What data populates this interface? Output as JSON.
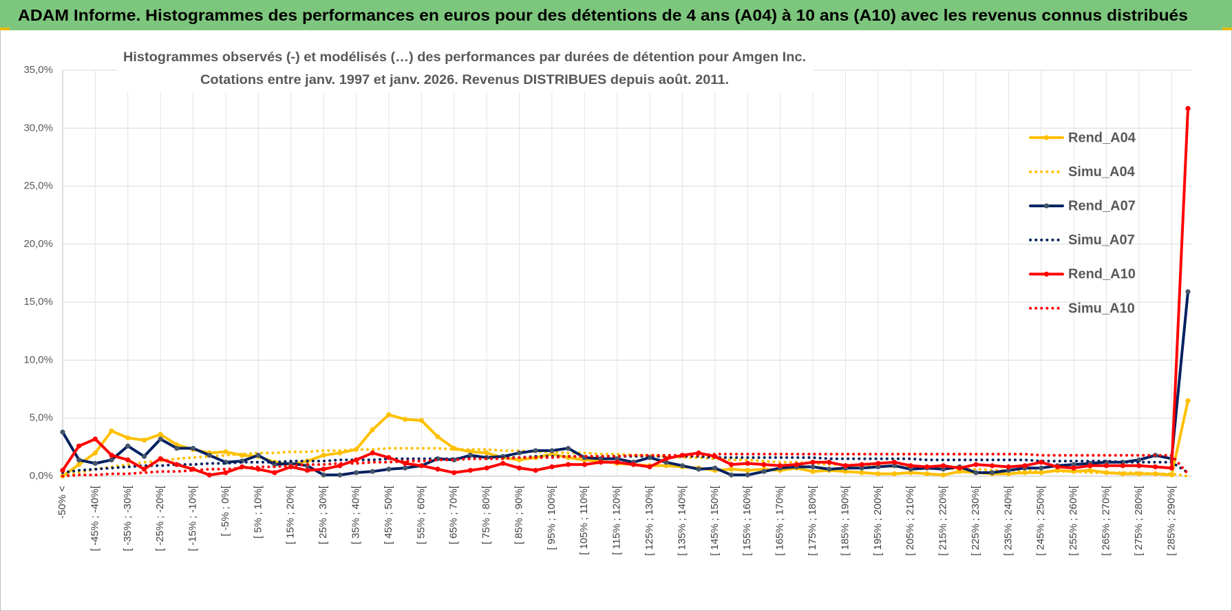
{
  "header": {
    "title": "ADAM Informe. Histogrammes des performances en euros pour des détentions de 4 ans (A04) à 10 ans (A10) avec les revenus connus distribués"
  },
  "chart_data": {
    "type": "line",
    "title": [
      "Histogrammes observés (-) et modélisés (…) des performances par durées de détention pour Amgen Inc.",
      "Cotations entre janv. 1997 et janv. 2026. Revenus DISTRIBUES depuis août. 2011."
    ],
    "categories": [
      "-50% <",
      null,
      "[ -45% ; -40%[",
      null,
      "[ -35% ; -30%[",
      null,
      "[ -25% ; -20%[",
      null,
      "[ -15% ; -10%[",
      null,
      "[ -5% ; 0%[",
      null,
      "[ 5% ; 10%[",
      null,
      "[ 15% ; 20%[",
      null,
      "[ 25% ; 30%[",
      null,
      "[ 35% ; 40%[",
      null,
      "[ 45% ; 50%[",
      null,
      "[ 55% ; 60%[",
      null,
      "[ 65% ; 70%[",
      null,
      "[ 75% ; 80%[",
      null,
      "[ 85% ; 90%[",
      null,
      "[ 95% ; 100%[",
      null,
      "[ 105% ; 110%[",
      null,
      "[ 115% ; 120%[",
      null,
      "[ 125% ; 130%[",
      null,
      "[ 135% ; 140%[",
      null,
      "[ 145% ; 150%[",
      null,
      "[ 155% ; 160%[",
      null,
      "[ 165% ; 170%[",
      null,
      "[ 175% ; 180%[",
      null,
      "[ 185% ; 190%[",
      null,
      "[ 195% ; 200%[",
      null,
      "[ 205% ; 210%[",
      null,
      "[ 215% ; 220%[",
      null,
      "[ 225% ; 230%[",
      null,
      "[ 235% ; 240%[",
      null,
      "[ 245% ; 250%[",
      null,
      "[ 255% ; 260%[",
      null,
      "[ 265% ; 270%[",
      null,
      "[ 275% ; 280%[",
      null,
      "[ 285% ; 290%[",
      null
    ],
    "series": [
      {
        "name": "Rend_A04",
        "color": "#ffc000",
        "style": "solid",
        "markers": true,
        "values": [
          0.0,
          1.0,
          2.0,
          3.9,
          3.3,
          3.1,
          3.6,
          2.7,
          2.3,
          2.0,
          2.1,
          1.8,
          1.7,
          1.2,
          1.0,
          1.3,
          1.8,
          2.0,
          2.3,
          4.0,
          5.3,
          4.9,
          4.8,
          3.4,
          2.4,
          2.1,
          2.0,
          1.6,
          1.4,
          1.6,
          1.9,
          1.6,
          1.4,
          1.3,
          1.1,
          1.0,
          0.9,
          0.9,
          0.8,
          0.7,
          0.5,
          0.6,
          0.5,
          0.6,
          0.5,
          0.7,
          0.4,
          0.5,
          0.4,
          0.3,
          0.2,
          0.2,
          0.3,
          0.2,
          0.1,
          0.4,
          0.3,
          0.2,
          0.2,
          0.3,
          0.3,
          0.5,
          0.4,
          0.5,
          0.3,
          0.2,
          0.2,
          0.2,
          0.1,
          6.5
        ]
      },
      {
        "name": "Simu_A04",
        "color": "#ffc000",
        "style": "dotted",
        "markers": false,
        "values": [
          0.0,
          0.3,
          0.6,
          0.8,
          1.0,
          1.2,
          1.3,
          1.5,
          1.6,
          1.7,
          1.8,
          1.9,
          2.0,
          2.0,
          2.1,
          2.1,
          2.2,
          2.2,
          2.3,
          2.3,
          2.4,
          2.4,
          2.4,
          2.4,
          2.3,
          2.3,
          2.3,
          2.2,
          2.2,
          2.1,
          2.1,
          2.0,
          2.0,
          1.9,
          1.9,
          1.8,
          1.8,
          1.7,
          1.6,
          1.6,
          1.5,
          1.4,
          1.4,
          1.3,
          1.2,
          1.2,
          1.1,
          1.0,
          1.0,
          0.9,
          0.9,
          0.8,
          0.8,
          0.7,
          0.7,
          0.6,
          0.6,
          0.5,
          0.5,
          0.5,
          0.4,
          0.4,
          0.4,
          0.3,
          0.3,
          0.3,
          0.3,
          0.2,
          0.2,
          0.0
        ]
      },
      {
        "name": "Rend_A07",
        "color": "#002060",
        "marker_color": "#44546a",
        "style": "solid",
        "markers": true,
        "values": [
          3.8,
          1.4,
          1.1,
          1.4,
          2.6,
          1.7,
          3.2,
          2.4,
          2.4,
          1.8,
          1.2,
          1.3,
          1.8,
          1.0,
          1.1,
          0.9,
          0.1,
          0.1,
          0.3,
          0.4,
          0.6,
          0.7,
          0.9,
          1.5,
          1.4,
          1.8,
          1.6,
          1.7,
          2.0,
          2.2,
          2.2,
          2.4,
          1.6,
          1.5,
          1.5,
          1.2,
          1.6,
          1.2,
          0.9,
          0.6,
          0.7,
          0.1,
          0.1,
          0.4,
          0.7,
          0.8,
          0.8,
          0.6,
          0.7,
          0.7,
          0.8,
          0.9,
          0.6,
          0.7,
          0.6,
          0.8,
          0.3,
          0.3,
          0.5,
          0.7,
          0.7,
          0.9,
          1.0,
          1.1,
          1.2,
          1.2,
          1.4,
          1.8,
          1.5,
          15.9
        ]
      },
      {
        "name": "Simu_A07",
        "color": "#002060",
        "style": "dotted",
        "markers": false,
        "values": [
          0.3,
          0.5,
          0.6,
          0.7,
          0.8,
          0.9,
          0.9,
          1.0,
          1.0,
          1.1,
          1.1,
          1.2,
          1.2,
          1.2,
          1.3,
          1.3,
          1.3,
          1.4,
          1.4,
          1.4,
          1.5,
          1.5,
          1.5,
          1.5,
          1.5,
          1.6,
          1.6,
          1.6,
          1.6,
          1.7,
          1.7,
          1.7,
          1.7,
          1.7,
          1.7,
          1.7,
          1.7,
          1.7,
          1.7,
          1.7,
          1.6,
          1.6,
          1.6,
          1.6,
          1.6,
          1.6,
          1.6,
          1.5,
          1.5,
          1.5,
          1.5,
          1.5,
          1.5,
          1.4,
          1.4,
          1.4,
          1.4,
          1.4,
          1.4,
          1.4,
          1.3,
          1.3,
          1.3,
          1.3,
          1.3,
          1.2,
          1.2,
          1.2,
          1.2,
          0.3
        ]
      },
      {
        "name": "Rend_A10",
        "color": "#ff0000",
        "style": "solid",
        "markers": true,
        "values": [
          0.5,
          2.6,
          3.2,
          1.8,
          1.4,
          0.6,
          1.5,
          1.0,
          0.6,
          0.1,
          0.3,
          0.8,
          0.6,
          0.3,
          0.8,
          0.5,
          0.6,
          0.9,
          1.4,
          2.0,
          1.6,
          1.1,
          0.9,
          0.6,
          0.3,
          0.5,
          0.7,
          1.1,
          0.7,
          0.5,
          0.8,
          1.0,
          1.0,
          1.2,
          1.2,
          1.0,
          0.8,
          1.5,
          1.8,
          2.0,
          1.7,
          1.0,
          1.1,
          1.0,
          0.9,
          1.0,
          1.2,
          1.2,
          0.9,
          1.0,
          1.1,
          1.2,
          0.9,
          0.8,
          0.9,
          0.7,
          1.0,
          0.9,
          0.8,
          0.9,
          1.2,
          0.8,
          0.7,
          0.9,
          0.9,
          0.9,
          0.9,
          0.8,
          0.7,
          31.7
        ]
      },
      {
        "name": "Simu_A10",
        "color": "#ff0000",
        "style": "dotted",
        "markers": false,
        "values": [
          0.0,
          0.1,
          0.1,
          0.2,
          0.2,
          0.3,
          0.4,
          0.4,
          0.5,
          0.6,
          0.6,
          0.7,
          0.8,
          0.8,
          0.9,
          1.0,
          1.0,
          1.1,
          1.1,
          1.2,
          1.2,
          1.3,
          1.3,
          1.4,
          1.4,
          1.5,
          1.5,
          1.5,
          1.6,
          1.6,
          1.6,
          1.7,
          1.7,
          1.7,
          1.7,
          1.8,
          1.8,
          1.8,
          1.8,
          1.8,
          1.9,
          1.9,
          1.9,
          1.9,
          1.9,
          1.9,
          1.9,
          1.9,
          1.9,
          1.9,
          1.9,
          1.9,
          1.9,
          1.9,
          1.9,
          1.9,
          1.9,
          1.9,
          1.9,
          1.9,
          1.8,
          1.8,
          1.8,
          1.8,
          1.8,
          1.8,
          1.8,
          1.8,
          1.8,
          0.2
        ]
      }
    ],
    "ylim": [
      0,
      35
    ],
    "yticks": [
      {
        "value": 0,
        "label": "0,0%"
      },
      {
        "value": 5,
        "label": "5,0%"
      },
      {
        "value": 10,
        "label": "10,0%"
      },
      {
        "value": 15,
        "label": "15,0%"
      },
      {
        "value": 20,
        "label": "20,0%"
      },
      {
        "value": 25,
        "label": "25,0%"
      },
      {
        "value": 30,
        "label": "30,0%"
      },
      {
        "value": 35,
        "label": "35,0%"
      }
    ],
    "grid": true,
    "legend": "right"
  }
}
